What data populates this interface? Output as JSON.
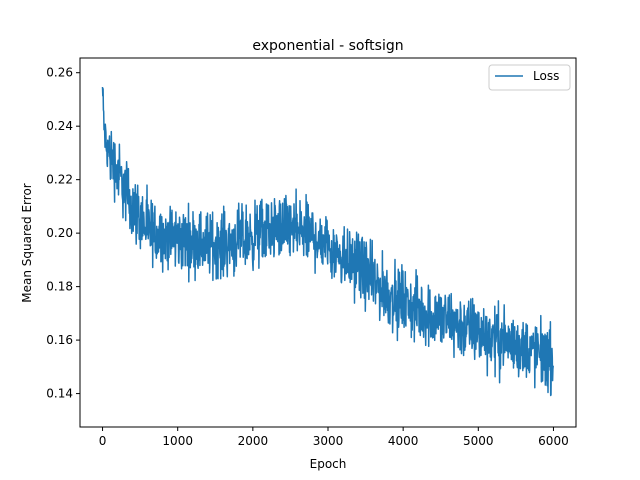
{
  "chart_data": {
    "type": "line",
    "title": "exponential - softsign",
    "xlabel": "Epoch",
    "ylabel": "Mean Squared Error",
    "xlim": [
      -300,
      6300
    ],
    "ylim": [
      0.1275,
      0.2655
    ],
    "xticks": [
      0,
      1000,
      2000,
      3000,
      4000,
      5000,
      6000
    ],
    "xtick_labels": [
      "0",
      "1000",
      "2000",
      "3000",
      "4000",
      "5000",
      "6000"
    ],
    "yticks": [
      0.14,
      0.16,
      0.18,
      0.2,
      0.22,
      0.24,
      0.26
    ],
    "ytick_labels": [
      "0.14",
      "0.16",
      "0.18",
      "0.20",
      "0.22",
      "0.24",
      "0.26"
    ],
    "grid": false,
    "legend": {
      "position": "upper right",
      "entries": [
        "Loss"
      ]
    },
    "series": [
      {
        "name": "Loss",
        "color": "#1f77b4",
        "trend": {
          "x": [
            0,
            20,
            50,
            100,
            200,
            300,
            400,
            500,
            600,
            800,
            1000,
            1200,
            1400,
            1600,
            1800,
            2000,
            2200,
            2400,
            2600,
            2800,
            3000,
            3200,
            3400,
            3600,
            3800,
            4000,
            4200,
            4400,
            4600,
            4800,
            5000,
            5200,
            5400,
            5600,
            5800,
            6000
          ],
          "y": [
            0.254,
            0.24,
            0.232,
            0.229,
            0.223,
            0.216,
            0.21,
            0.206,
            0.201,
            0.199,
            0.198,
            0.197,
            0.196,
            0.196,
            0.197,
            0.199,
            0.201,
            0.202,
            0.201,
            0.199,
            0.196,
            0.192,
            0.188,
            0.182,
            0.177,
            0.174,
            0.171,
            0.169,
            0.167,
            0.165,
            0.163,
            0.161,
            0.159,
            0.157,
            0.155,
            0.152
          ]
        },
        "noise_amplitude": 0.006
      }
    ]
  }
}
